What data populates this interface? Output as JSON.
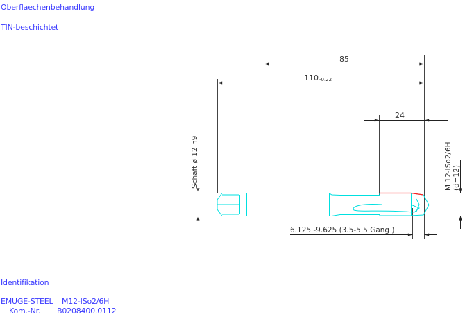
{
  "header": {
    "surface_label": "Oberflaechenbehandlung",
    "surface_value": "TIN-beschichtet"
  },
  "drawing": {
    "dim_total_offset": "85",
    "dim_length": "110",
    "dim_length_tolerance": "-0.22",
    "dim_thread_length": "24",
    "shank_label": "Schaft ø 12  h9",
    "thread_label": "M 12-ISo2/6H",
    "thread_diameter": "(d=12)",
    "chamfer_label": "6.125  -9.625 (3.5-5.5 Gang  )",
    "colors": {
      "text": "#3a3aff",
      "tool": "#00e0e0",
      "centerline": "#e8e800",
      "thread_edge": "#ff2020",
      "dimension": "#333333"
    }
  },
  "identification": {
    "heading": "Identifikation",
    "line1_brand": "EMUGE-STEEL",
    "line1_spec": "M12-ISo2/6H",
    "line2_label": "Kom.-Nr.",
    "line2_value": "B0208400.0112"
  }
}
